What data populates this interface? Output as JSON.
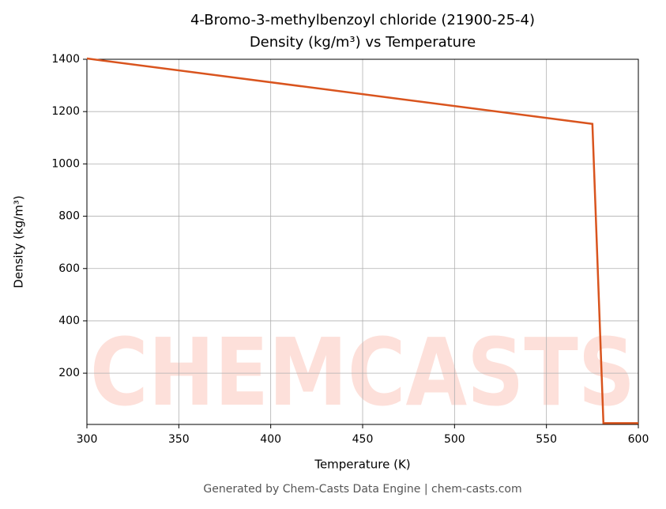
{
  "chart_data": {
    "type": "line",
    "title": "4-Bromo-3-methylbenzoyl chloride (21900-25-4)",
    "subtitle": "Density (kg/m³) vs Temperature",
    "x_label": "Temperature (K)",
    "y_label": "Density (kg/m³)",
    "footer": "Generated by Chem-Casts Data Engine | chem-casts.com",
    "watermark": "CHEMCASTS",
    "x": [
      300,
      575,
      581,
      600
    ],
    "series": [
      {
        "name": "Density",
        "color": "#d9541e",
        "values": [
          1403,
          1153,
          9,
          9
        ]
      }
    ],
    "xlim": [
      300,
      600
    ],
    "xticks": [
      300,
      350,
      400,
      450,
      500,
      550,
      600
    ],
    "ylim": [
      4,
      1400
    ],
    "yticks": [
      200,
      400,
      600,
      800,
      1000,
      1200,
      1400
    ],
    "grid": true
  }
}
